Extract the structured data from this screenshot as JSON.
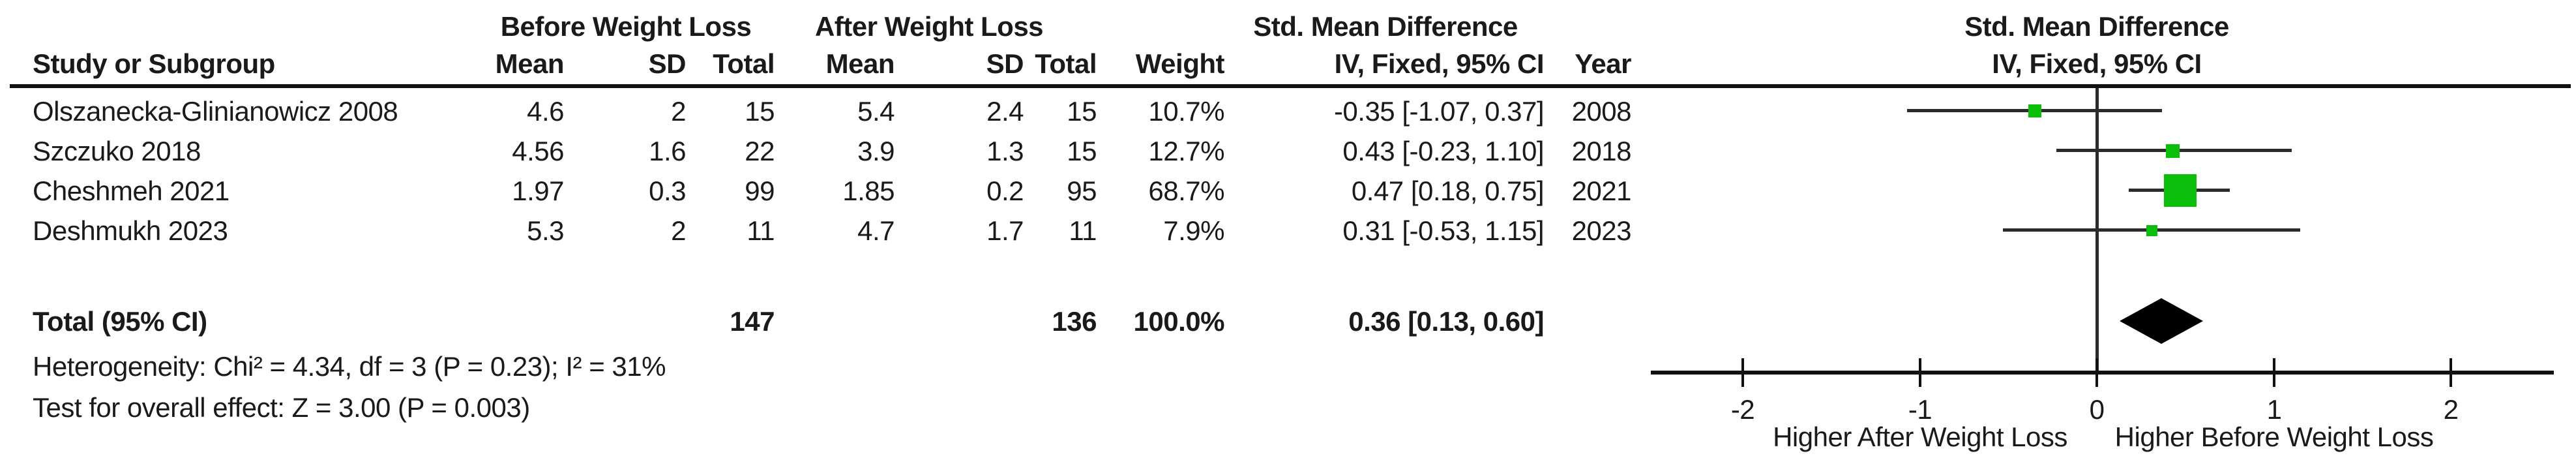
{
  "title_row": {
    "before": "Before Weight Loss",
    "after": "After Weight Loss",
    "smd_table": "Std. Mean Difference",
    "smd_plot": "Std. Mean Difference"
  },
  "header_row": {
    "study": "Study or Subgroup",
    "mean_before": "Mean",
    "sd_before": "SD",
    "total_before": "Total",
    "mean_after": "Mean",
    "sd_after": "SD",
    "total_after": "Total",
    "weight": "Weight",
    "ci": "IV, Fixed, 95% CI",
    "year": "Year",
    "ci_plot": "IV, Fixed, 95% CI"
  },
  "chart_data": {
    "type": "forest",
    "effect_measure": "Std. Mean Difference",
    "model": "IV, Fixed, 95% CI",
    "studies": [
      {
        "study": "Olszanecka-Glinianowicz 2008",
        "mean_before": "4.6",
        "sd_before": "2",
        "total_before": "15",
        "mean_after": "5.4",
        "sd_after": "2.4",
        "total_after": "15",
        "weight": "10.7%",
        "weight_pct": 10.7,
        "smd": -0.35,
        "ci_low": -1.07,
        "ci_high": 0.37,
        "ci_label": "-0.35 [-1.07, 0.37]",
        "year": "2008"
      },
      {
        "study": "Szczuko 2018",
        "mean_before": "4.56",
        "sd_before": "1.6",
        "total_before": "22",
        "mean_after": "3.9",
        "sd_after": "1.3",
        "total_after": "15",
        "weight": "12.7%",
        "weight_pct": 12.7,
        "smd": 0.43,
        "ci_low": -0.23,
        "ci_high": 1.1,
        "ci_label": "0.43 [-0.23, 1.10]",
        "year": "2018"
      },
      {
        "study": "Cheshmeh 2021",
        "mean_before": "1.97",
        "sd_before": "0.3",
        "total_before": "99",
        "mean_after": "1.85",
        "sd_after": "0.2",
        "total_after": "95",
        "weight": "68.7%",
        "weight_pct": 68.7,
        "smd": 0.47,
        "ci_low": 0.18,
        "ci_high": 0.75,
        "ci_label": "0.47 [0.18, 0.75]",
        "year": "2021"
      },
      {
        "study": "Deshmukh 2023",
        "mean_before": "5.3",
        "sd_before": "2",
        "total_before": "11",
        "mean_after": "4.7",
        "sd_after": "1.7",
        "total_after": "11",
        "weight": "7.9%",
        "weight_pct": 7.9,
        "smd": 0.31,
        "ci_low": -0.53,
        "ci_high": 1.15,
        "ci_label": "0.31 [-0.53, 1.15]",
        "year": "2023"
      }
    ],
    "total": {
      "label": "Total (95% CI)",
      "total_before": "147",
      "total_after": "136",
      "weight": "100.0%",
      "smd": 0.36,
      "ci_low": 0.13,
      "ci_high": 0.6,
      "ci_label": "0.36 [0.13, 0.60]"
    },
    "footnotes": {
      "heterogeneity": "Heterogeneity: Chi² = 4.34, df = 3 (P = 0.23); I² = 31%",
      "overall_effect": "Test for overall effect: Z = 3.00 (P = 0.003)"
    },
    "axis": {
      "tick_labels": [
        "-2",
        "-1",
        "0",
        "1",
        "2"
      ],
      "tick_values": [
        -2,
        -1,
        0,
        1,
        2
      ],
      "xmin": -2.52,
      "xmax": 2.58,
      "label_left": "Higher After Weight Loss",
      "label_right": "Higher Before Weight Loss"
    },
    "colors": {
      "marker": "#0ABE0A",
      "line": "#2b2b2b",
      "diamond": "#000000"
    }
  }
}
